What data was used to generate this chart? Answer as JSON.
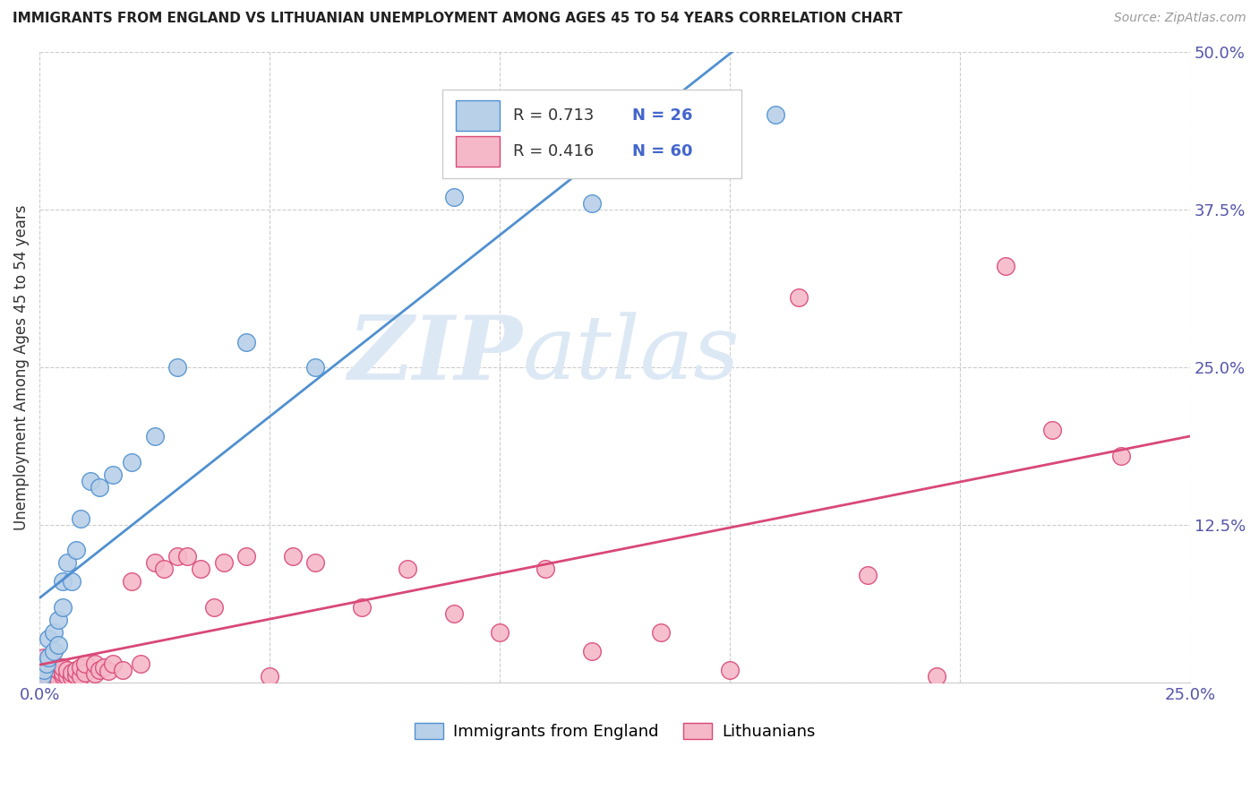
{
  "title": "IMMIGRANTS FROM ENGLAND VS LITHUANIAN UNEMPLOYMENT AMONG AGES 45 TO 54 YEARS CORRELATION CHART",
  "source": "Source: ZipAtlas.com",
  "ylabel": "Unemployment Among Ages 45 to 54 years",
  "xlim": [
    0.0,
    0.25
  ],
  "ylim": [
    0.0,
    0.5
  ],
  "xticks": [
    0.0,
    0.05,
    0.1,
    0.15,
    0.2,
    0.25
  ],
  "yticks": [
    0.0,
    0.125,
    0.25,
    0.375,
    0.5
  ],
  "xtick_labels": [
    "0.0%",
    "",
    "",
    "",
    "",
    "25.0%"
  ],
  "ytick_labels": [
    "",
    "12.5%",
    "25.0%",
    "37.5%",
    "50.0%"
  ],
  "legend_labels": [
    "Immigrants from England",
    "Lithuanians"
  ],
  "r_england": 0.713,
  "n_england": 26,
  "r_lithuanian": 0.416,
  "n_lithuanian": 60,
  "color_england": "#b8d0e8",
  "color_lithuanian": "#f5b8c8",
  "line_color_england": "#5090d0",
  "line_color_lithuanian": "#d84878",
  "watermark_zip": "ZIP",
  "watermark_atlas": "atlas",
  "england_x": [
    0.0005,
    0.001,
    0.0015,
    0.002,
    0.002,
    0.003,
    0.003,
    0.004,
    0.004,
    0.005,
    0.005,
    0.006,
    0.007,
    0.008,
    0.009,
    0.011,
    0.013,
    0.016,
    0.02,
    0.025,
    0.03,
    0.045,
    0.06,
    0.09,
    0.12,
    0.16
  ],
  "england_y": [
    0.005,
    0.01,
    0.015,
    0.02,
    0.035,
    0.025,
    0.04,
    0.03,
    0.05,
    0.06,
    0.08,
    0.095,
    0.08,
    0.105,
    0.13,
    0.16,
    0.155,
    0.165,
    0.175,
    0.195,
    0.25,
    0.27,
    0.25,
    0.385,
    0.38,
    0.45
  ],
  "lithuanian_x": [
    0.0003,
    0.0005,
    0.001,
    0.001,
    0.001,
    0.002,
    0.002,
    0.002,
    0.003,
    0.003,
    0.003,
    0.004,
    0.004,
    0.005,
    0.005,
    0.005,
    0.006,
    0.006,
    0.007,
    0.007,
    0.008,
    0.008,
    0.009,
    0.009,
    0.01,
    0.01,
    0.012,
    0.012,
    0.013,
    0.014,
    0.015,
    0.016,
    0.018,
    0.02,
    0.022,
    0.025,
    0.027,
    0.03,
    0.032,
    0.035,
    0.038,
    0.04,
    0.045,
    0.05,
    0.055,
    0.06,
    0.07,
    0.08,
    0.09,
    0.1,
    0.11,
    0.12,
    0.135,
    0.15,
    0.165,
    0.18,
    0.195,
    0.21,
    0.22,
    0.235
  ],
  "lithuanian_y": [
    0.003,
    0.005,
    0.008,
    0.012,
    0.02,
    0.005,
    0.01,
    0.018,
    0.004,
    0.008,
    0.015,
    0.003,
    0.01,
    0.006,
    0.008,
    0.012,
    0.005,
    0.01,
    0.004,
    0.008,
    0.006,
    0.01,
    0.005,
    0.012,
    0.008,
    0.015,
    0.007,
    0.015,
    0.01,
    0.012,
    0.009,
    0.015,
    0.01,
    0.08,
    0.015,
    0.095,
    0.09,
    0.1,
    0.1,
    0.09,
    0.06,
    0.095,
    0.1,
    0.005,
    0.1,
    0.095,
    0.06,
    0.09,
    0.055,
    0.04,
    0.09,
    0.025,
    0.04,
    0.01,
    0.305,
    0.085,
    0.005,
    0.33,
    0.2,
    0.18
  ]
}
